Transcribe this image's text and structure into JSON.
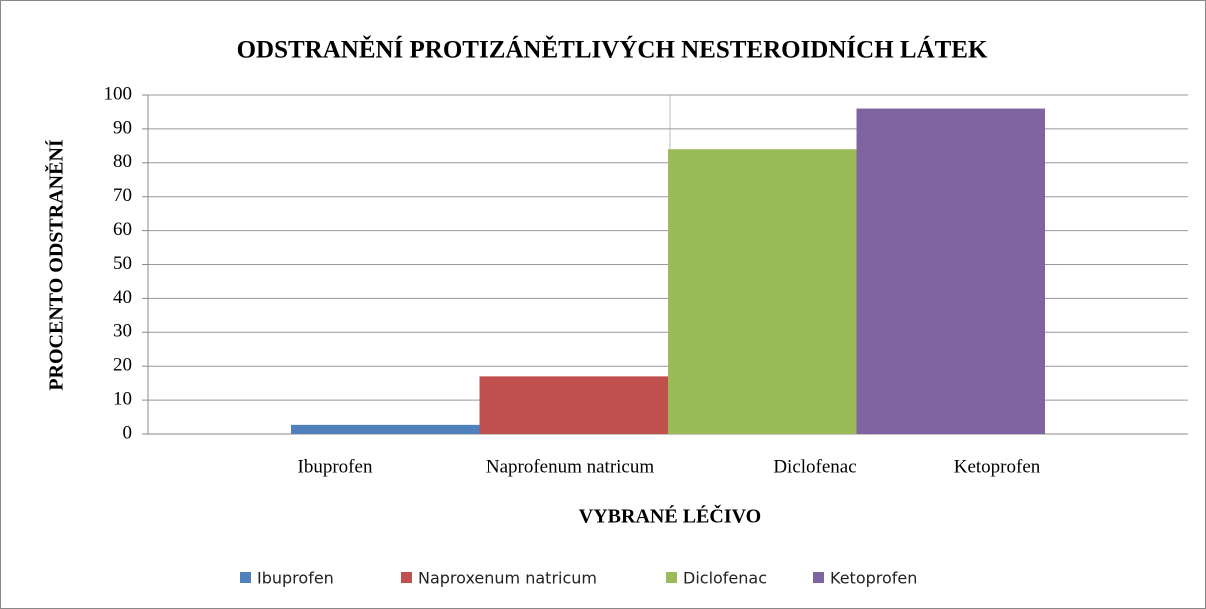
{
  "chart_data": {
    "type": "bar",
    "title": "ODSTRANĚNÍ PROTIZÁNĚTLIVÝCH NESTEROIDNÍCH LÁTEK",
    "y_label": "PROCENTO ODSTRANĚNÍ",
    "x_label": "VYBRANÉ LÉČIVO",
    "categories": [
      "Ibuprofen",
      "Naprofenum natricum",
      "Diclofenac",
      "Ketoprofen"
    ],
    "values": [
      2.7,
      17,
      84,
      96
    ],
    "colors": [
      "#4f81bd",
      "#c0504d",
      "#9bbb59",
      "#8064a2"
    ],
    "legend_labels": [
      "Ibuprofen",
      "Naproxenum natricum",
      "Diclofenac",
      "Ketoprofen"
    ],
    "ylim": [
      0,
      100
    ],
    "yticks": [
      0,
      10,
      20,
      30,
      40,
      50,
      60,
      70,
      80,
      90,
      100
    ],
    "grid": true
  }
}
